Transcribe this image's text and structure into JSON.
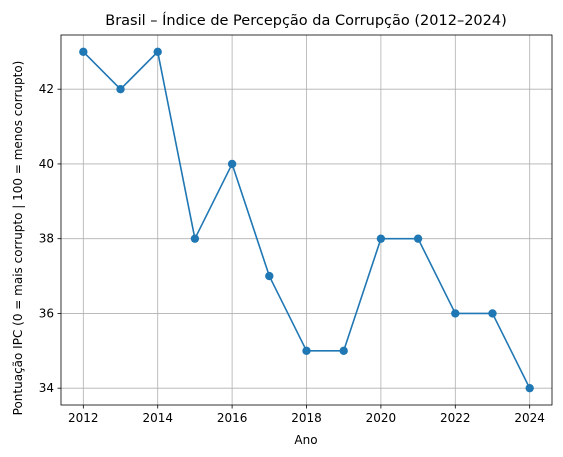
{
  "chart_data": {
    "type": "line",
    "title": "Brasil – Índice de Percepção da Corrupção (2012–2024)",
    "xlabel": "Ano",
    "ylabel": "Pontuação IPC (0 = mais corrupto | 100 = menos corrupto)",
    "x": [
      2012,
      2013,
      2014,
      2015,
      2016,
      2017,
      2018,
      2019,
      2020,
      2021,
      2022,
      2023,
      2024
    ],
    "series": [
      {
        "values": [
          43,
          42,
          43,
          38,
          40,
          37,
          35,
          35,
          38,
          38,
          36,
          36,
          34
        ],
        "color": "#1f77b4",
        "marker": "circle"
      }
    ],
    "xticks": [
      2012,
      2014,
      2016,
      2018,
      2020,
      2022,
      2024
    ],
    "yticks": [
      34,
      36,
      38,
      40,
      42
    ],
    "xlim": [
      2011.4,
      2024.6
    ],
    "ylim": [
      33.55,
      43.45
    ],
    "grid": true,
    "grid_color": "#b0b0b0",
    "legend": false
  }
}
